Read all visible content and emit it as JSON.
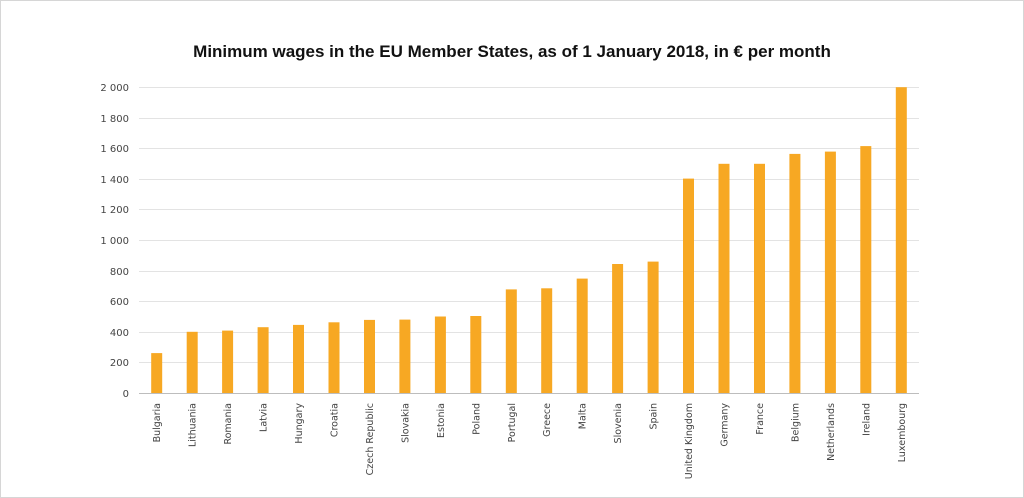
{
  "chart_data": {
    "type": "bar",
    "title": "Minimum  wages in the EU Member States, as of 1 January 2018, in € per month",
    "xlabel": "",
    "ylabel": "",
    "ylim": [
      0,
      2000
    ],
    "yticks": [
      0,
      200,
      400,
      600,
      800,
      1000,
      1200,
      1400,
      1600,
      1800,
      2000
    ],
    "ytick_labels": [
      "0",
      "200",
      "400",
      "600",
      "800",
      "1 000",
      "1 200",
      "1 400",
      "1 600",
      "1 800",
      "2 000"
    ],
    "grid": true,
    "bar_color": "#F7A823",
    "categories": [
      "Bulgaria",
      "Lithuania",
      "Romania",
      "Latvia",
      "Hungary",
      "Croatia",
      "Czech Republic",
      "Slovakia",
      "Estonia",
      "Poland",
      "Portugal",
      "Greece",
      "Malta",
      "Slovenia",
      "Spain",
      "United Kingdom",
      "Germany",
      "France",
      "Belgium",
      "Netherlands",
      "Ireland",
      "Luxembourg"
    ],
    "values": [
      261,
      400,
      408,
      430,
      445,
      462,
      478,
      480,
      500,
      503,
      677,
      684,
      748,
      843,
      859,
      1401,
      1498,
      1498,
      1563,
      1578,
      1614,
      1999
    ]
  }
}
